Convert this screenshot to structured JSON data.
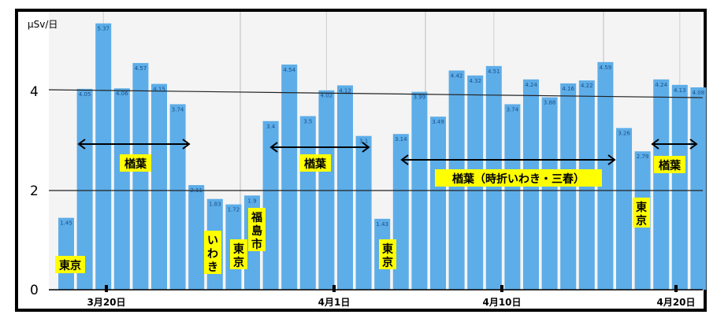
{
  "chart_data": {
    "type": "bar",
    "title": "",
    "ylabel": "μSv/日",
    "xlabel": "",
    "ylim": [
      0,
      5.7
    ],
    "yticks": [
      "0",
      "2",
      "4"
    ],
    "grid": true,
    "x_tick_labels": [
      "3月20日",
      "4月1日",
      "4月10日",
      "4月20日"
    ],
    "values": [
      1.45,
      4.05,
      5.37,
      4.06,
      4.57,
      4.15,
      3.74,
      2.11,
      1.83,
      1.72,
      1.9,
      3.4,
      4.54,
      3.5,
      4.02,
      4.12,
      3.1,
      1.43,
      3.14,
      3.99,
      3.49,
      4.42,
      4.32,
      4.51,
      3.74,
      4.24,
      3.88,
      4.16,
      4.22,
      4.59,
      3.26,
      2.79,
      4.24,
      4.13,
      4.08
    ],
    "data_labels": [
      "1.45",
      "4.05",
      "5.37",
      "4.06",
      "4.57",
      "4.15",
      "3.74",
      "2.11",
      "1.83",
      "1.72",
      "1.9",
      "3.4",
      "4.54",
      "3.5",
      "4.02",
      "4.12",
      "3.1",
      "1.43",
      "3.14",
      "3.99",
      "3.49",
      "4.42",
      "4.32",
      "4.51",
      "3.74",
      "4.24",
      "3.88",
      "4.16",
      "4.22",
      "4.59",
      "3.26",
      "2.79",
      "4.24",
      "4.13",
      "4.08"
    ],
    "bar_color": "#5dade8",
    "annotations": {
      "tokyo_1": "東京",
      "naraha_1": "楢葉",
      "iwaki": "いわき",
      "tokyo_2": "東京",
      "fukushima": "福島市",
      "naraha_2": "楢葉",
      "tokyo_3": "東京",
      "naraha_3": "楢葉（時折いわき・三春）",
      "tokyo_4": "東京",
      "naraha_4": "楢葉"
    },
    "annotation_bg": "#ffff00"
  }
}
